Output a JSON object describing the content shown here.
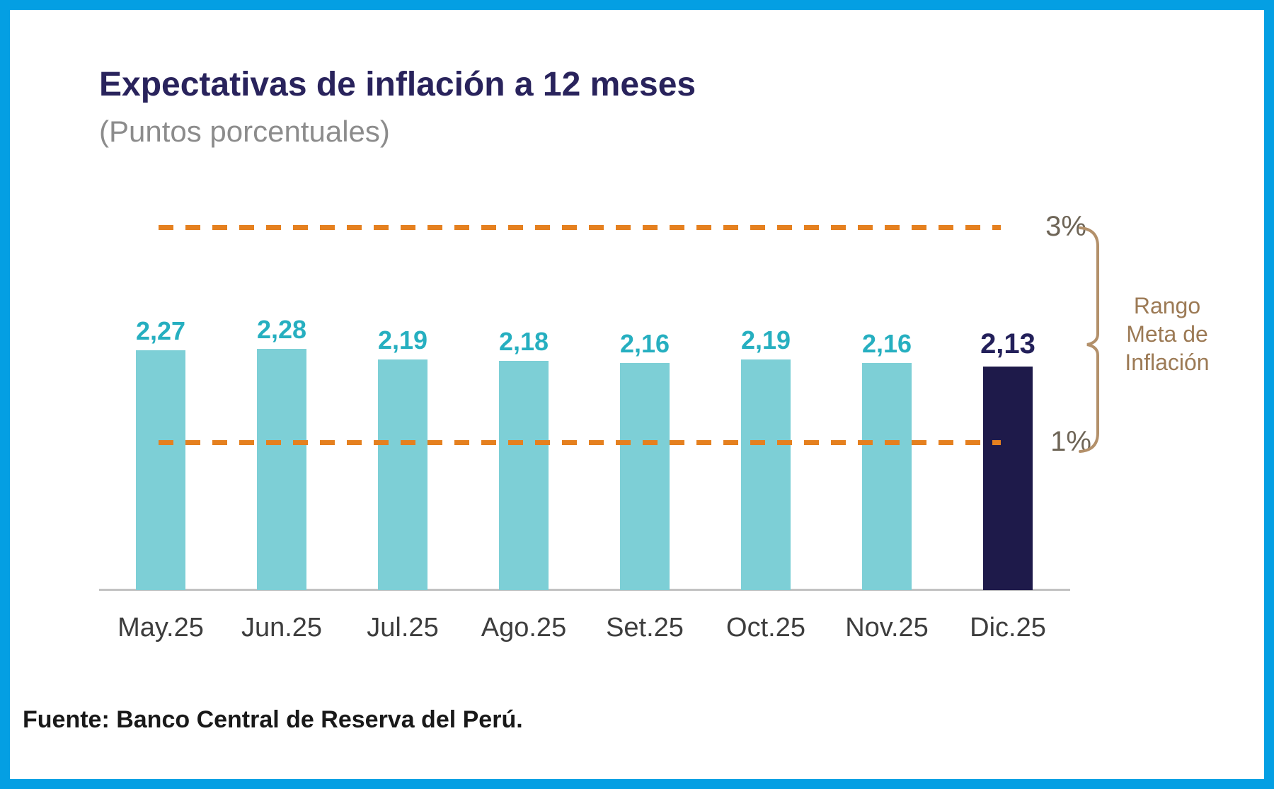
{
  "chart_data": {
    "type": "bar",
    "title": "Expectativas de inflación a 12 meses",
    "subtitle": "(Puntos porcentuales)",
    "categories": [
      "May.25",
      "Jun.25",
      "Jul.25",
      "Ago.25",
      "Set.25",
      "Oct.25",
      "Nov.25",
      "Dic.25"
    ],
    "values": [
      2.27,
      2.28,
      2.19,
      2.18,
      2.16,
      2.19,
      2.16,
      2.13
    ],
    "value_labels": [
      "2,27",
      "2,28",
      "2,19",
      "2,18",
      "2,16",
      "2,19",
      "2,16",
      "2,13"
    ],
    "highlight_index": 7,
    "reference_lines": [
      {
        "label": "3%",
        "value": 3.0,
        "style": "dashed"
      },
      {
        "label": "1%",
        "value": 1.0,
        "style": "dashed"
      }
    ],
    "annotation": {
      "lines": [
        "Rango",
        "Meta de",
        "Inflación"
      ]
    },
    "source": "Fuente: Banco Central de Reserva del Perú.",
    "xlabel": "",
    "ylabel": "",
    "ylim": [
      0,
      3.5
    ],
    "grid": false,
    "legend": false,
    "colors": {
      "bar": "#7dcfd6",
      "bar_highlight": "#1e1a4a",
      "value_label": "#26afc0",
      "value_label_highlight": "#23205a",
      "reference_line": "#e5801f",
      "reference_label": "#6e6557",
      "bracket": "#b3906a",
      "annotation": "#9c7a55",
      "title": "#29235c",
      "subtitle": "#8c8c8c",
      "axis": "#c2c2c2",
      "frame_border": "#049fe3"
    }
  }
}
